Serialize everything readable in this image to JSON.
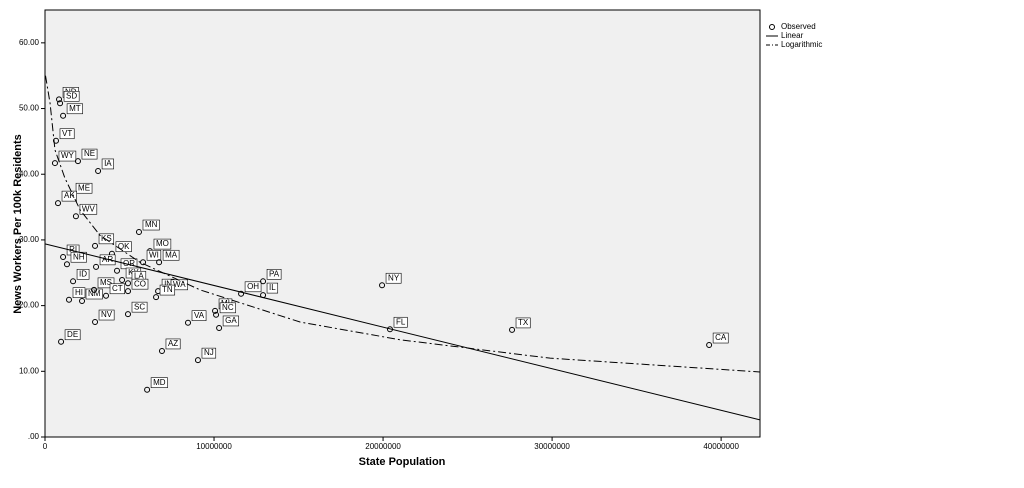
{
  "chart_data": {
    "type": "scatter",
    "x_label": "State Population",
    "y_label": "News Workers Per 100k Residents",
    "xlim": [
      0,
      42300000
    ],
    "ylim": [
      0,
      65
    ],
    "xticks": [
      0,
      10000000,
      20000000,
      30000000,
      40000000
    ],
    "yticks": [
      {
        "value": 0,
        "label": ".00"
      },
      {
        "value": 10,
        "label": "10.00"
      },
      {
        "value": 20,
        "label": "20.00"
      },
      {
        "value": 30,
        "label": "30.00"
      },
      {
        "value": 40,
        "label": "40.00"
      },
      {
        "value": 50,
        "label": "50.00"
      },
      {
        "value": 60,
        "label": "60.00"
      }
    ],
    "legend": "top-right",
    "series": [
      {
        "name": "Observed",
        "style": "markers",
        "color": "#000000",
        "labels": [
          "ND",
          "SD",
          "MT",
          "VT",
          "WY",
          "NE",
          "IA",
          "ME",
          "AK",
          "WV",
          "KS",
          "RI",
          "NH",
          "OK",
          "AR",
          "OR",
          "KY",
          "LA",
          "CO",
          "MN",
          "MO",
          "WI",
          "MA",
          "IN",
          "WA",
          "TN",
          "ID",
          "HI",
          "NM",
          "MS",
          "CT",
          "SC",
          "NV",
          "DE",
          "VA",
          "AZ",
          "NJ",
          "MD",
          "MI",
          "NC",
          "GA",
          "OH",
          "PA",
          "IL",
          "NY",
          "FL",
          "TX",
          "CA"
        ],
        "x": [
          830000,
          890000,
          1070000,
          650000,
          590000,
          1950000,
          3140000,
          1600000,
          770000,
          1830000,
          2960000,
          1070000,
          1300000,
          3960000,
          3020000,
          4260000,
          4560000,
          4910000,
          4910000,
          5560000,
          6210000,
          5800000,
          6750000,
          6690000,
          7220000,
          6570000,
          1660000,
          1420000,
          2190000,
          2900000,
          3610000,
          4910000,
          2960000,
          950000,
          8460000,
          6920000,
          9050000,
          6040000,
          10060000,
          10120000,
          10300000,
          11600000,
          12900000,
          12900000,
          19940000,
          20410000,
          27630000,
          39290000
        ],
        "values": [
          51.4,
          50.8,
          48.9,
          45.1,
          41.7,
          42.0,
          40.5,
          36.8,
          35.6,
          33.6,
          29.1,
          27.4,
          26.3,
          27.9,
          25.9,
          25.3,
          23.9,
          23.4,
          22.2,
          31.2,
          28.3,
          26.6,
          26.6,
          22.2,
          22.1,
          21.3,
          23.7,
          20.9,
          20.7,
          22.4,
          21.5,
          18.7,
          17.5,
          14.5,
          17.4,
          13.1,
          11.7,
          7.2,
          19.2,
          18.6,
          16.6,
          21.8,
          23.7,
          21.6,
          23.1,
          16.4,
          16.3,
          14.0
        ]
      },
      {
        "name": "Linear",
        "style": "solid",
        "color": "#000000",
        "x": [
          0,
          42300000
        ],
        "values": [
          29.4,
          2.6
        ]
      },
      {
        "name": "Logarithmic",
        "style": "dash-dot",
        "color": "#000000",
        "x": [
          30000,
          300000,
          590000,
          1180000,
          2070000,
          3250000,
          5620000,
          9170000,
          15090000,
          21010000,
          29880000,
          42300000
        ],
        "values": [
          55.0,
          50.8,
          43.7,
          39.4,
          34.6,
          30.7,
          26.6,
          22.4,
          17.5,
          14.8,
          12.0,
          9.9
        ]
      }
    ]
  }
}
